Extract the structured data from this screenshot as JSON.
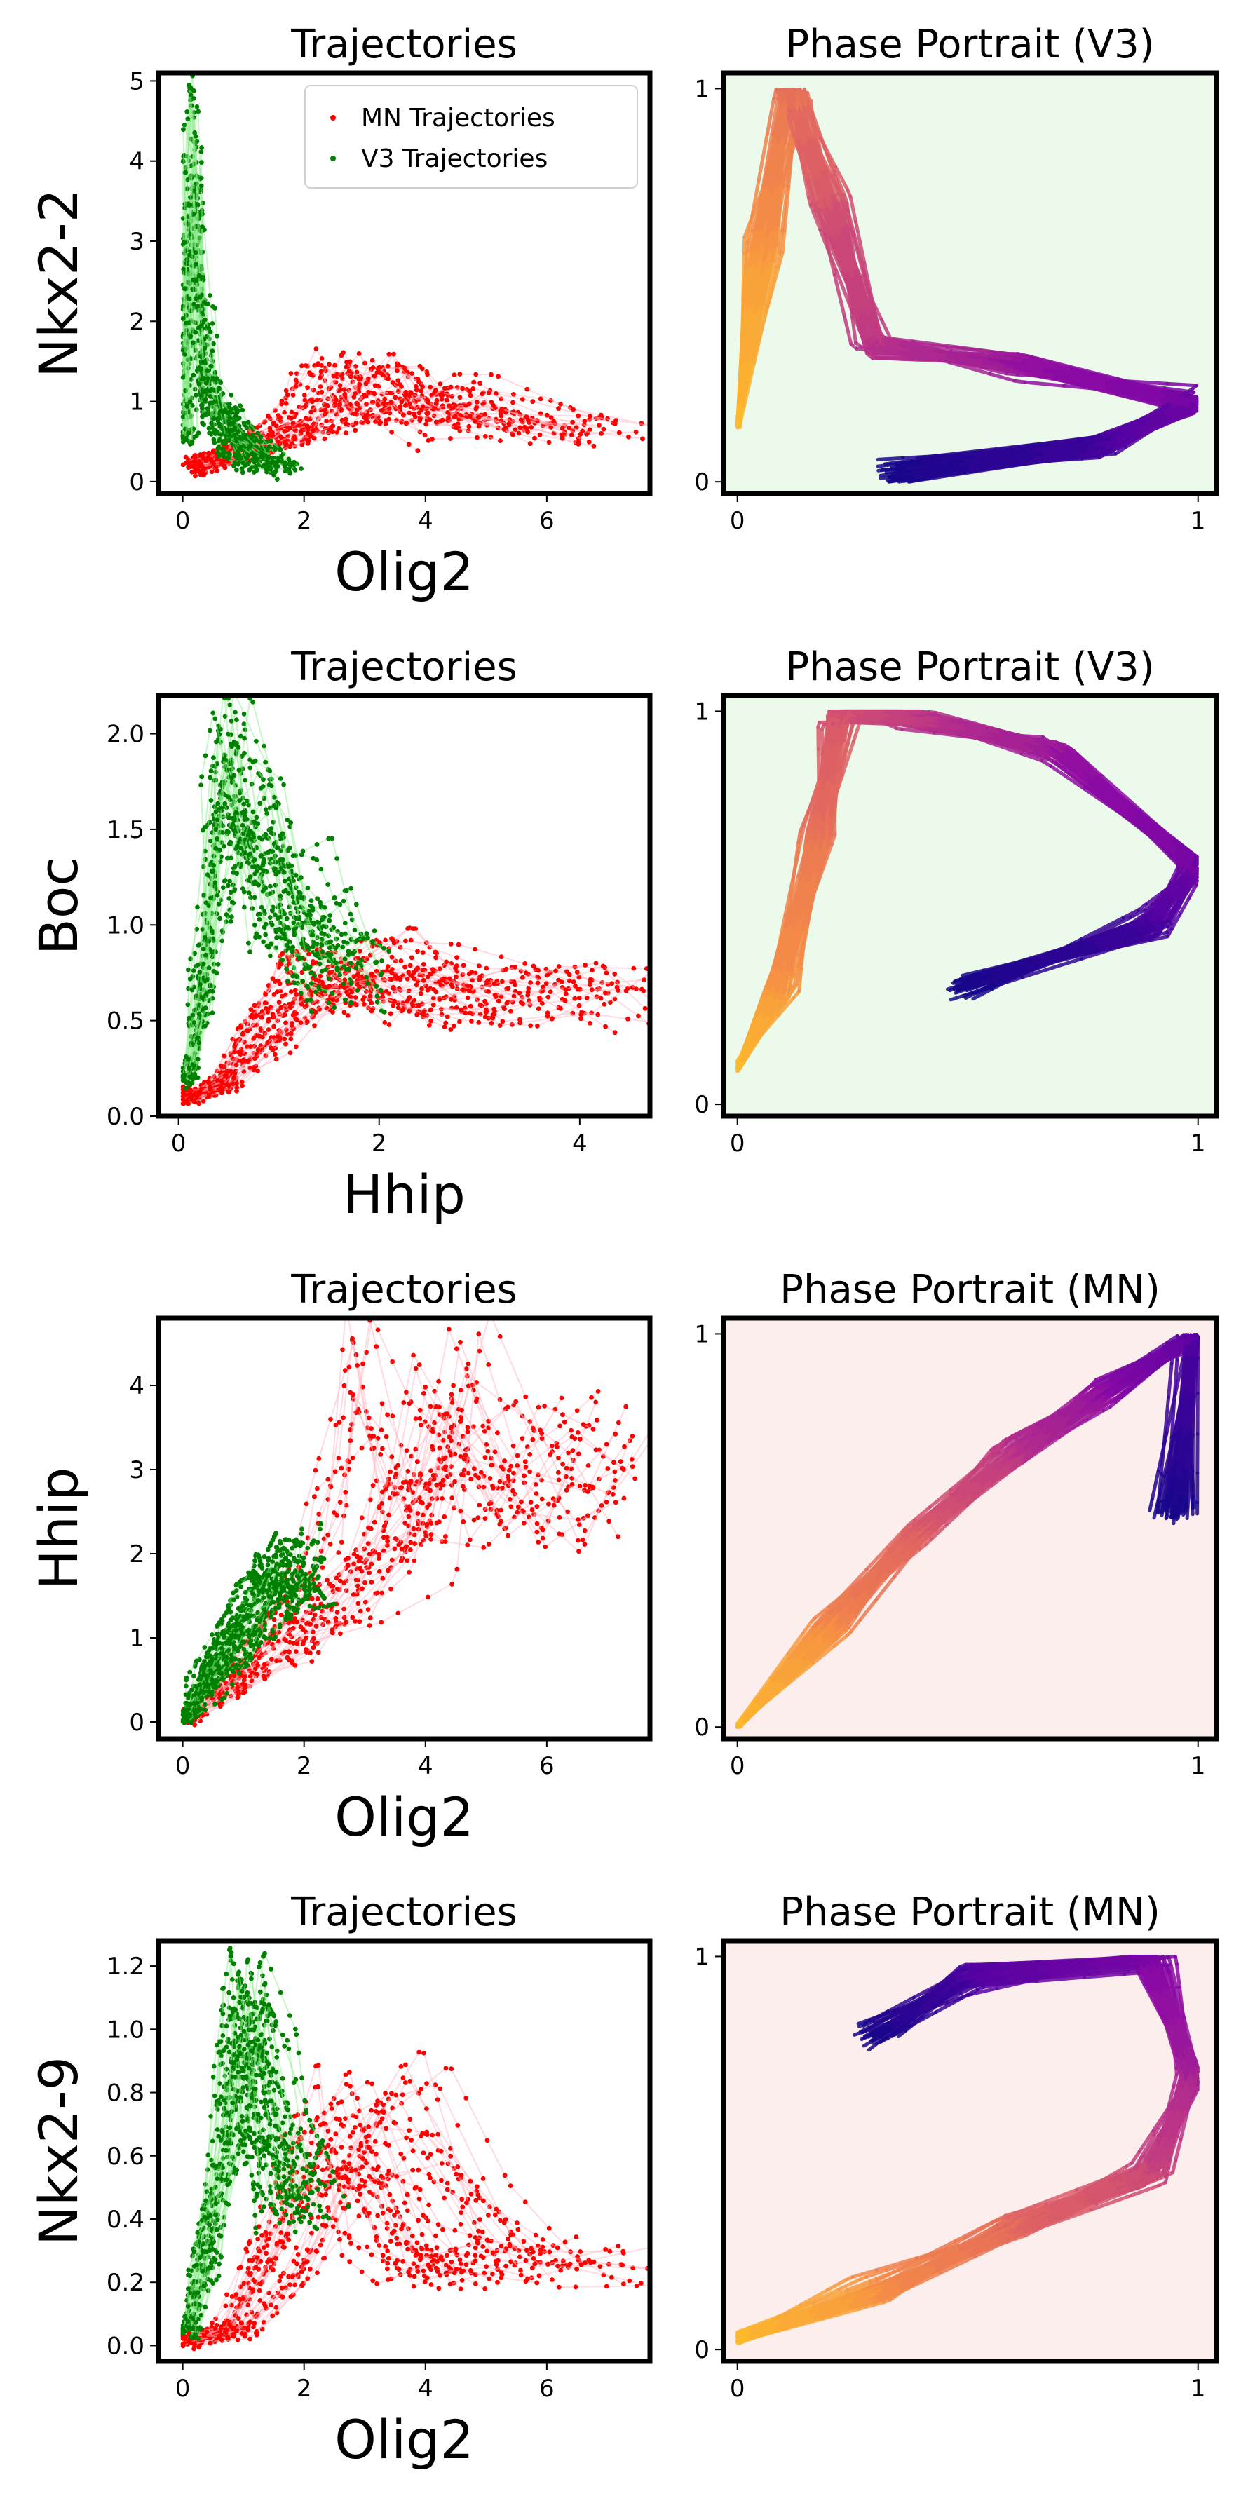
{
  "figure": {
    "palette": {
      "mn": "#ff0000",
      "v3": "#008000",
      "mn_line": "#ffb6c1",
      "v3_line": "#90ee90",
      "v3_bg": "#ecfaec",
      "mn_bg": "#fdeeee"
    },
    "legend": [
      {
        "label": "MN Trajectories",
        "color": "#ff0000"
      },
      {
        "label": "V3 Trajectories",
        "color": "#008000"
      }
    ]
  },
  "chart_data": [
    {
      "type": "scatter",
      "title": "Trajectories",
      "xlabel": "Olig2",
      "ylabel": "Nkx2-2",
      "xlim": [
        -0.4,
        7.7
      ],
      "ylim": [
        -0.15,
        5.1
      ],
      "xticks": [
        0,
        2,
        4,
        6
      ],
      "yticks": [
        0,
        1,
        2,
        3,
        4,
        5
      ],
      "legend": "top-right",
      "series": [
        {
          "name": "MN Trajectories",
          "color": "#ff0000",
          "x": [
            0.2,
            0.6,
            1.2,
            2.0,
            2.8,
            3.5,
            4.2,
            5.0,
            6.0,
            7.3
          ],
          "y": [
            0.2,
            0.3,
            0.5,
            0.7,
            1.0,
            1.5,
            1.3,
            1.1,
            0.9,
            0.75
          ]
        },
        {
          "name": "V3 Trajectories",
          "color": "#008000",
          "x": [
            0.05,
            0.1,
            0.15,
            0.25,
            0.35,
            0.5,
            0.8,
            1.1,
            1.4,
            1.7
          ],
          "y": [
            0.6,
            2.5,
            4.8,
            3.5,
            2.0,
            1.3,
            0.9,
            0.6,
            0.4,
            0.2
          ]
        }
      ]
    },
    {
      "type": "line",
      "title": "Phase Portrait (V3)",
      "xlim": [
        -0.03,
        1.04
      ],
      "ylim": [
        -0.03,
        1.04
      ],
      "xticks": [
        0,
        1
      ],
      "yticks": [
        0,
        1
      ],
      "colormap": "plasma",
      "series": [
        {
          "x": [
            0.0,
            0.05,
            0.12,
            0.2,
            0.3,
            0.6,
            1.0,
            0.8,
            0.35
          ],
          "y": [
            0.15,
            0.6,
            1.0,
            0.7,
            0.35,
            0.3,
            0.2,
            0.1,
            0.02
          ]
        }
      ]
    },
    {
      "type": "scatter",
      "title": "Trajectories",
      "xlabel": "Hhip",
      "ylabel": "Boc",
      "xlim": [
        -0.2,
        4.7
      ],
      "ylim": [
        -0.0,
        2.2
      ],
      "xticks": [
        0,
        2,
        4
      ],
      "yticks": [
        0.0,
        0.5,
        1.0,
        1.5,
        2.0
      ],
      "series": [
        {
          "name": "MN Trajectories",
          "color": "#ff0000",
          "x": [
            0.1,
            0.5,
            1.0,
            1.6,
            2.2,
            3.0,
            3.8,
            4.5
          ],
          "y": [
            0.1,
            0.2,
            0.5,
            0.9,
            0.9,
            0.8,
            0.75,
            0.7
          ]
        },
        {
          "name": "V3 Trajectories",
          "color": "#008000",
          "x": [
            0.1,
            0.3,
            0.5,
            0.7,
            1.0,
            1.3,
            1.6,
            2.0
          ],
          "y": [
            0.2,
            0.8,
            1.7,
            2.1,
            1.7,
            1.4,
            1.1,
            0.9
          ]
        }
      ]
    },
    {
      "type": "line",
      "title": "Phase Portrait (V3)",
      "xlim": [
        -0.03,
        1.04
      ],
      "ylim": [
        -0.03,
        1.04
      ],
      "xticks": [
        0,
        1
      ],
      "yticks": [
        0,
        1
      ],
      "colormap": "plasma",
      "series": [
        {
          "x": [
            0.0,
            0.1,
            0.18,
            0.22,
            0.4,
            0.7,
            1.0,
            0.9,
            0.5
          ],
          "y": [
            0.1,
            0.3,
            0.7,
            1.0,
            0.98,
            0.9,
            0.6,
            0.45,
            0.3
          ]
        }
      ]
    },
    {
      "type": "scatter",
      "title": "Trajectories",
      "xlabel": "Olig2",
      "ylabel": "Hhip",
      "xlim": [
        -0.4,
        7.7
      ],
      "ylim": [
        -0.2,
        4.8
      ],
      "xticks": [
        0,
        2,
        4,
        6
      ],
      "yticks": [
        0,
        1,
        2,
        3,
        4
      ],
      "series": [
        {
          "name": "MN Trajectories",
          "color": "#ff0000",
          "x": [
            0.1,
            1.0,
            2.0,
            3.0,
            4.0,
            4.6,
            5.5,
            6.5,
            7.3
          ],
          "y": [
            0.05,
            0.6,
            1.2,
            1.9,
            2.8,
            4.5,
            3.6,
            3.4,
            3.7
          ]
        },
        {
          "name": "V3 Trajectories",
          "color": "#008000",
          "x": [
            0.1,
            0.5,
            1.0,
            1.5,
            2.0,
            2.2
          ],
          "y": [
            0.1,
            0.6,
            1.1,
            1.6,
            2.0,
            2.2
          ]
        }
      ]
    },
    {
      "type": "line",
      "title": "Phase Portrait (MN)",
      "xlim": [
        -0.03,
        1.04
      ],
      "ylim": [
        -0.03,
        1.04
      ],
      "xticks": [
        0,
        1
      ],
      "yticks": [
        0,
        1
      ],
      "colormap": "plasma",
      "series": [
        {
          "x": [
            0.0,
            0.2,
            0.4,
            0.6,
            0.8,
            1.0,
            0.95
          ],
          "y": [
            0.0,
            0.25,
            0.5,
            0.7,
            0.85,
            1.0,
            0.55
          ]
        }
      ]
    },
    {
      "type": "scatter",
      "title": "Trajectories",
      "xlabel": "Olig2",
      "ylabel": "Nkx2-9",
      "xlim": [
        -0.4,
        7.7
      ],
      "ylim": [
        -0.05,
        1.28
      ],
      "xticks": [
        0,
        2,
        4,
        6
      ],
      "yticks": [
        0.0,
        0.2,
        0.4,
        0.6,
        0.8,
        1.0,
        1.2
      ],
      "series": [
        {
          "name": "MN Trajectories",
          "color": "#ff0000",
          "x": [
            0.1,
            1.0,
            2.0,
            3.0,
            4.0,
            5.0,
            6.0,
            7.3
          ],
          "y": [
            0.02,
            0.05,
            0.3,
            0.7,
            0.85,
            0.5,
            0.3,
            0.3
          ]
        },
        {
          "name": "V3 Trajectories",
          "color": "#008000",
          "x": [
            0.1,
            0.5,
            1.0,
            1.3,
            1.6,
            2.0,
            2.4
          ],
          "y": [
            0.05,
            0.4,
            0.9,
            1.22,
            1.0,
            0.7,
            0.6
          ]
        }
      ]
    },
    {
      "type": "line",
      "title": "Phase Portrait (MN)",
      "xlim": [
        -0.03,
        1.04
      ],
      "ylim": [
        -0.03,
        1.04
      ],
      "xticks": [
        0,
        1
      ],
      "yticks": [
        0,
        1
      ],
      "colormap": "plasma",
      "series": [
        {
          "x": [
            0.0,
            0.3,
            0.6,
            0.9,
            1.0,
            0.9,
            0.5,
            0.3
          ],
          "y": [
            0.03,
            0.15,
            0.3,
            0.45,
            0.7,
            1.0,
            0.95,
            0.8
          ]
        }
      ]
    }
  ]
}
